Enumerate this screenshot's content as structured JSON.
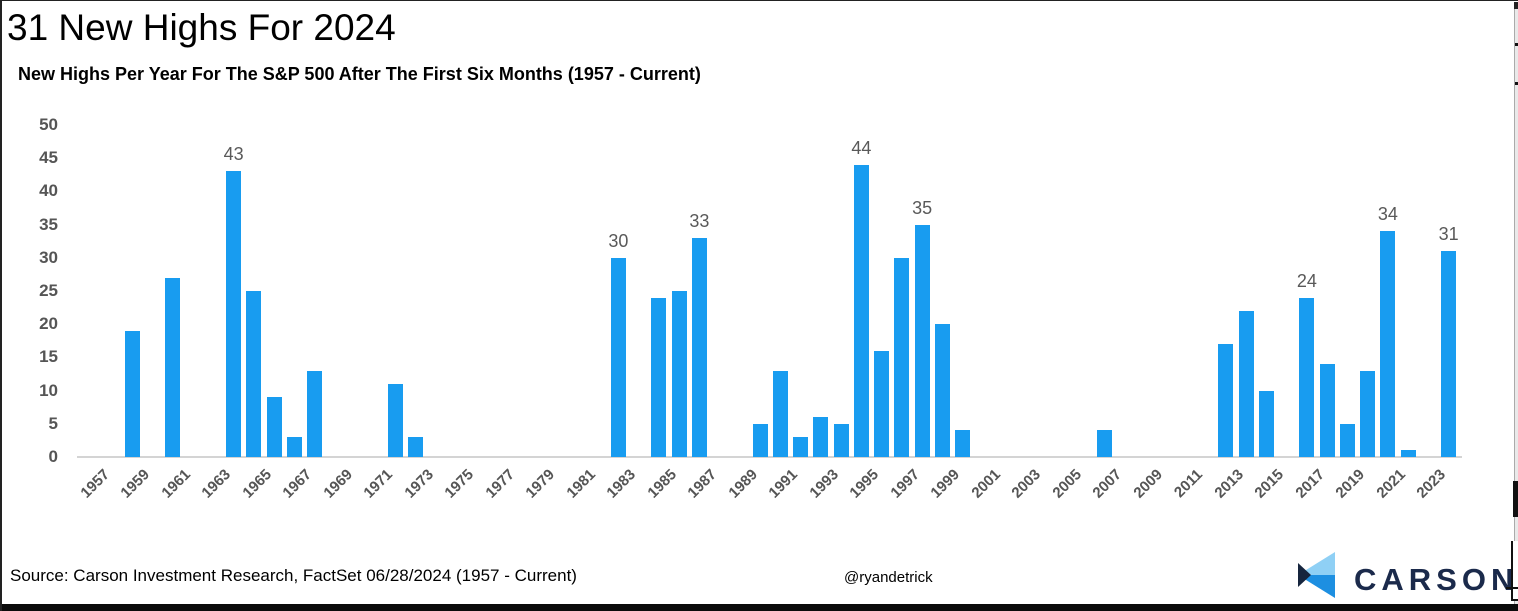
{
  "title": "31 New Highs For 2024",
  "subtitle": "New Highs Per Year For The S&P 500 After The First Six Months (1957 - Current)",
  "footer": {
    "source": "Source: Carson Investment Research, FactSet 06/28/2024 (1957 - Current)",
    "handle": "@ryandetrick",
    "logo_text": "CARSON"
  },
  "colors": {
    "bar": "#189CF0",
    "axis_text": "#555555",
    "data_label": "#595959",
    "baseline": "#D4D4D4",
    "logo_navy": "#1B2A4B",
    "logo_light_blue": "#8FD0F5",
    "logo_mid_blue": "#1D8FE1"
  },
  "chart_data": {
    "type": "bar",
    "title": "New Highs Per Year For The S&P 500 After The First Six Months (1957 - Current)",
    "xlabel": "",
    "ylabel": "",
    "ylim": [
      0,
      50
    ],
    "grid": false,
    "legend": "none",
    "x": [
      1957,
      1958,
      1959,
      1960,
      1961,
      1962,
      1963,
      1964,
      1965,
      1966,
      1967,
      1968,
      1969,
      1970,
      1971,
      1972,
      1973,
      1974,
      1975,
      1976,
      1977,
      1978,
      1979,
      1980,
      1981,
      1982,
      1983,
      1984,
      1985,
      1986,
      1987,
      1988,
      1989,
      1990,
      1991,
      1992,
      1993,
      1994,
      1995,
      1996,
      1997,
      1998,
      1999,
      2000,
      2001,
      2002,
      2003,
      2004,
      2005,
      2006,
      2007,
      2008,
      2009,
      2010,
      2011,
      2012,
      2013,
      2014,
      2015,
      2016,
      2017,
      2018,
      2019,
      2020,
      2021,
      2022,
      2023,
      2024
    ],
    "values": [
      0,
      0,
      19,
      0,
      27,
      0,
      0,
      43,
      25,
      9,
      3,
      13,
      0,
      0,
      0,
      11,
      3,
      0,
      0,
      0,
      0,
      0,
      0,
      0,
      0,
      0,
      30,
      0,
      24,
      25,
      33,
      0,
      0,
      5,
      13,
      3,
      6,
      5,
      44,
      16,
      30,
      35,
      20,
      4,
      0,
      0,
      0,
      0,
      0,
      0,
      4,
      0,
      0,
      0,
      0,
      0,
      17,
      22,
      10,
      0,
      24,
      14,
      5,
      13,
      34,
      1,
      0,
      31
    ],
    "labeled_years": [
      1964,
      1983,
      1987,
      1995,
      1998,
      2017,
      2021,
      2024
    ],
    "xticks": [
      "1957",
      "1959",
      "1961",
      "1963",
      "1965",
      "1967",
      "1969",
      "1971",
      "1973",
      "1975",
      "1977",
      "1979",
      "1981",
      "1983",
      "1985",
      "1987",
      "1989",
      "1991",
      "1993",
      "1995",
      "1997",
      "1999",
      "2001",
      "2003",
      "2005",
      "2007",
      "2009",
      "2011",
      "2013",
      "2015",
      "2017",
      "2019",
      "2021",
      "2023"
    ],
    "yticks": [
      0,
      5,
      10,
      15,
      20,
      25,
      30,
      35,
      40,
      45,
      50
    ]
  }
}
